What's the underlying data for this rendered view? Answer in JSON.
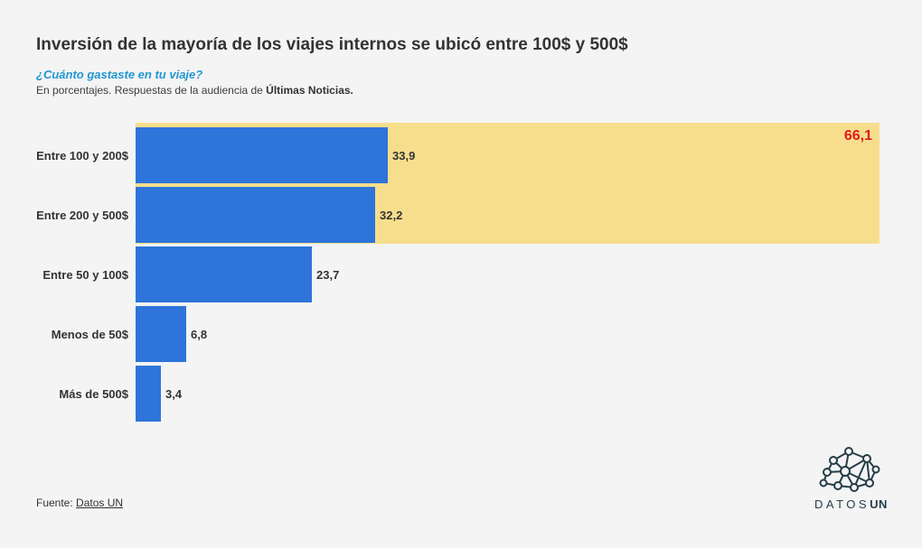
{
  "chart_data": {
    "type": "bar",
    "orientation": "horizontal",
    "title": "Inversión de la mayoría de los viajes internos se ubicó entre 100$ y 500$",
    "subtitle": "¿Cuánto gastaste en tu viaje?",
    "note_prefix": "En porcentajes. Respuestas de la audiencia de ",
    "note_bold": "Últimas Noticias.",
    "categories": [
      "Entre 100 y 200$",
      "Entre 200 y 500$",
      "Entre 50 y 100$",
      "Menos de 50$",
      "Más de 500$"
    ],
    "values": [
      33.9,
      32.2,
      23.7,
      6.8,
      3.4
    ],
    "value_labels": [
      "33,9",
      "32,2",
      "23,7",
      "6,8",
      "3,4"
    ],
    "xlim": [
      0,
      100
    ],
    "grid": false,
    "legend": "none",
    "highlight": {
      "label": "66,1",
      "value": 66.1,
      "covers_categories": [
        "Entre 100 y 200$",
        "Entre 200 y 500$"
      ]
    }
  },
  "footer": {
    "source_prefix": "Fuente: ",
    "source_link_label": "Datos UN"
  },
  "logo": {
    "datos": "DATOS",
    "un": "UN"
  },
  "colors": {
    "background": "#f4f4f4",
    "bar_blue": "#2e74da",
    "highlight_yellow": "#f7de8d",
    "highlight_value_red": "#e0191c",
    "subtitle_blue": "#2196d3",
    "text_dark": "#333333",
    "logo_dark": "#263d47"
  }
}
